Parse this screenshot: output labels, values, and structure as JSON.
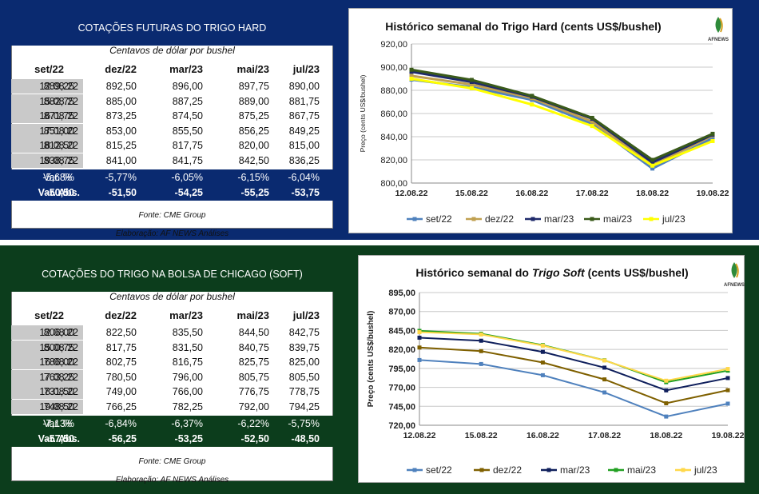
{
  "top_table": {
    "title": "COTAÇÕES FUTURAS DO TRIGO  HARD",
    "unit": "Centavos de dólar por bushel",
    "columns": [
      "set/22",
      "dez/22",
      "mar/23",
      "mai/23",
      "jul/23"
    ],
    "rows": [
      {
        "date": "12.08.22",
        "values": [
          "889,25",
          "892,50",
          "896,00",
          "897,75",
          "890,00"
        ]
      },
      {
        "date": "15.08.22",
        "values": [
          "882,75",
          "885,00",
          "887,25",
          "889,00",
          "881,75"
        ]
      },
      {
        "date": "16.08.22",
        "values": [
          "871,75",
          "873,25",
          "874,50",
          "875,25",
          "867,75"
        ]
      },
      {
        "date": "17.08.22",
        "values": [
          "851,00",
          "853,00",
          "855,50",
          "856,25",
          "849,25"
        ]
      },
      {
        "date": "18.08.22",
        "values": [
          "812,50",
          "815,25",
          "817,75",
          "820,00",
          "815,00"
        ]
      },
      {
        "date": "19.08.22",
        "values": [
          "838,75",
          "841,00",
          "841,75",
          "842,50",
          "836,25"
        ]
      }
    ],
    "var_pct_label": "Var. %",
    "var_pct": [
      "-5,68%",
      "-5,77%",
      "-6,05%",
      "-6,15%",
      "-6,04%"
    ],
    "var_abs_label": "Var. Abs.",
    "var_abs": [
      "-50,50",
      "-51,50",
      "-54,25",
      "-55,25",
      "-53,75"
    ],
    "source": "Fonte: CME Group",
    "credit": "Elaboração: AF NEWS Análises"
  },
  "bottom_table": {
    "title": "COTAÇÕES DO TRIGO NA BOLSA DE CHICAGO (SOFT)",
    "unit": "Centavos de dólar por bushel",
    "columns": [
      "set/22",
      "dez/22",
      "mar/23",
      "mai/23",
      "jul/23"
    ],
    "rows": [
      {
        "date": "12.08.22",
        "values": [
          "806,00",
          "822,50",
          "835,50",
          "844,50",
          "842,75"
        ]
      },
      {
        "date": "15.08.22",
        "values": [
          "800,75",
          "817,75",
          "831,50",
          "840,75",
          "839,75"
        ]
      },
      {
        "date": "16.08.22",
        "values": [
          "786,00",
          "802,75",
          "816,75",
          "825,75",
          "825,00"
        ]
      },
      {
        "date": "17.08.22",
        "values": [
          "763,25",
          "780,50",
          "796,00",
          "805,75",
          "805,50"
        ]
      },
      {
        "date": "18.08.22",
        "values": [
          "731,50",
          "749,00",
          "766,00",
          "776,75",
          "778,75"
        ]
      },
      {
        "date": "19.08.22",
        "values": [
          "748,50",
          "766,25",
          "782,25",
          "792,00",
          "794,25"
        ]
      }
    ],
    "var_pct_label": "Var. %",
    "var_pct": [
      "-7,13%",
      "-6,84%",
      "-6,37%",
      "-6,22%",
      "-5,75%"
    ],
    "var_abs_label": "Var. Abs.",
    "var_abs": [
      "-57,50",
      "-56,25",
      "-53,25",
      "-52,50",
      "-48,50"
    ],
    "source": "Fonte: CME Group",
    "credit": "Elaboração: AF NEWS Análises"
  },
  "logo_text": "AFNEWS",
  "colors": {
    "top_band": "#0a2a70",
    "bottom_band": "#0c3d1c",
    "header_gray": "#c9c9c9"
  },
  "chart_data": [
    {
      "type": "line",
      "title": "Histórico semanal do Trigo Hard (cents US$/bushel)",
      "xlabel": "",
      "ylabel": "Preço (cents US$/bushel)",
      "x": [
        "12.08.22",
        "15.08.22",
        "16.08.22",
        "17.08.22",
        "18.08.22",
        "19.08.22"
      ],
      "yticks": [
        "800,00",
        "820,00",
        "840,00",
        "860,00",
        "880,00",
        "900,00",
        "920,00"
      ],
      "ylim": [
        800,
        920
      ],
      "grid": true,
      "legend": "bottom",
      "series": [
        {
          "name": "set/22",
          "color": "#4f81bd",
          "values": [
            889.25,
            882.75,
            871.75,
            851.0,
            812.5,
            838.75
          ]
        },
        {
          "name": "dez/22",
          "color": "#c0a050",
          "values": [
            892.5,
            885.0,
            873.25,
            853.0,
            815.25,
            841.0
          ]
        },
        {
          "name": "mar/23",
          "color": "#1f2a6b",
          "values": [
            896.0,
            887.25,
            874.5,
            855.5,
            817.75,
            841.75
          ]
        },
        {
          "name": "mai/23",
          "color": "#3a5a1a",
          "values": [
            897.75,
            889.0,
            875.25,
            856.25,
            820.0,
            842.5
          ]
        },
        {
          "name": "jul/23",
          "color": "#ffff00",
          "values": [
            890.0,
            881.75,
            867.75,
            849.25,
            815.0,
            836.25
          ]
        }
      ]
    },
    {
      "type": "line",
      "title_parts": [
        "Histórico semanal do ",
        "Trigo Soft",
        " (cents US$/bushel)"
      ],
      "xlabel": "",
      "ylabel": "Preço (cents US$/bushel)",
      "x": [
        "12.08.22",
        "15.08.22",
        "16.08.22",
        "17.08.22",
        "18.08.22",
        "19.08.22"
      ],
      "yticks": [
        "720,00",
        "745,00",
        "770,00",
        "795,00",
        "820,00",
        "845,00",
        "870,00",
        "895,00"
      ],
      "ylim": [
        720,
        895
      ],
      "grid": true,
      "legend": "bottom",
      "series": [
        {
          "name": "set/22",
          "color": "#4f81bd",
          "values": [
            806.0,
            800.75,
            786.0,
            763.25,
            731.5,
            748.5
          ]
        },
        {
          "name": "dez/22",
          "color": "#7f6000",
          "values": [
            822.5,
            817.75,
            802.75,
            780.5,
            749.0,
            766.25
          ]
        },
        {
          "name": "mar/23",
          "color": "#0f1f5c",
          "values": [
            835.5,
            831.5,
            816.75,
            796.0,
            766.0,
            782.25
          ]
        },
        {
          "name": "mai/23",
          "color": "#22a022",
          "values": [
            844.5,
            840.75,
            825.75,
            805.75,
            776.75,
            792.0
          ]
        },
        {
          "name": "jul/23",
          "color": "#ffd84a",
          "values": [
            842.75,
            839.75,
            825.0,
            805.5,
            778.75,
            794.25
          ]
        }
      ]
    }
  ]
}
